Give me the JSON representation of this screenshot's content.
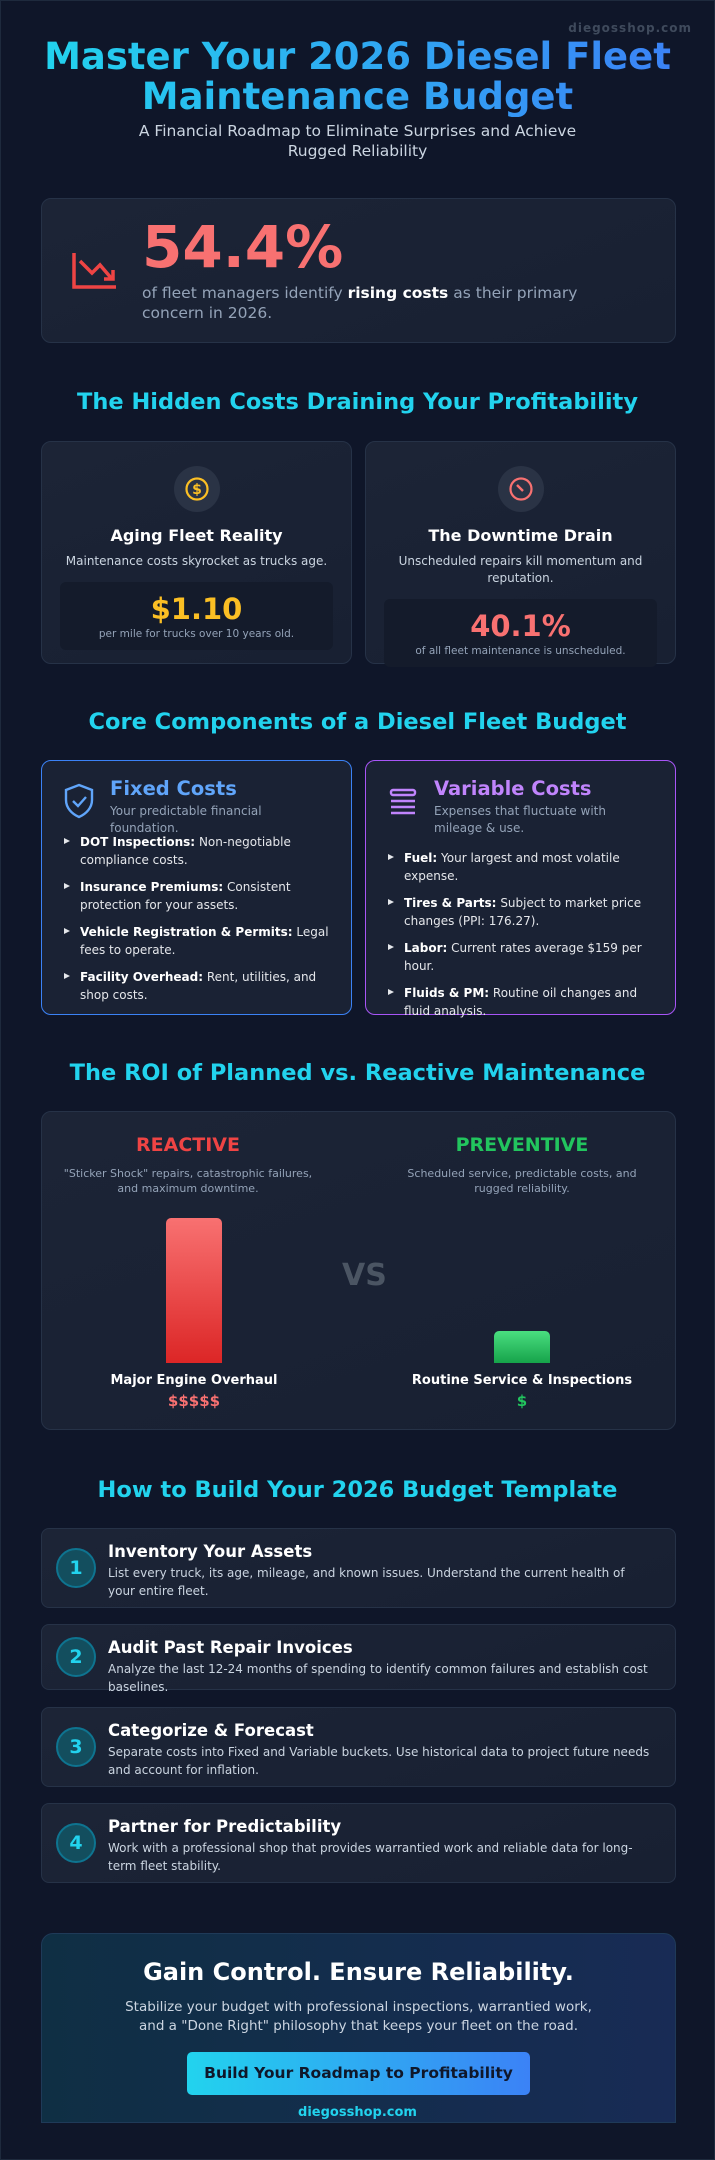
{
  "watermark": "diegosshop.com",
  "header": {
    "title": "Master Your 2026 Diesel Fleet Maintenance Budget",
    "subtitle": "A Financial Roadmap to Eliminate Surprises and Achieve Rugged Reliability"
  },
  "stat": {
    "value": "54.4%",
    "text_before": "of fleet managers identify",
    "emphasis": "rising costs",
    "text_after": "as their primary concern in 2026."
  },
  "hidden_costs": {
    "heading": "The Hidden Costs Draining Your Profitability",
    "cards": [
      {
        "title": "Aging Fleet Reality",
        "text": "Maintenance costs skyrocket as trucks age.",
        "value": "$1.10",
        "caption": "per mile for trucks over 10 years old."
      },
      {
        "title": "The Downtime Drain",
        "text": "Unscheduled repairs kill momentum and reputation.",
        "value": "40.1%",
        "caption": "of all fleet maintenance is unscheduled."
      }
    ]
  },
  "components": {
    "heading": "Core Components of a Diesel Fleet Budget",
    "columns": [
      {
        "title": "Fixed Costs",
        "subtitle": "Your predictable financial foundation.",
        "items": [
          {
            "label": "DOT Inspections:",
            "text": "Non-negotiable compliance costs."
          },
          {
            "label": "Insurance Premiums:",
            "text": "Consistent protection for your assets."
          },
          {
            "label": "Vehicle Registration & Permits:",
            "text": "Legal fees to operate."
          },
          {
            "label": "Facility Overhead:",
            "text": "Rent, utilities, and shop costs."
          }
        ]
      },
      {
        "title": "Variable Costs",
        "subtitle": "Expenses that fluctuate with mileage & use.",
        "items": [
          {
            "label": "Fuel:",
            "text": "Your largest and most volatile expense."
          },
          {
            "label": "Tires & Parts:",
            "text": "Subject to market price changes (PPI: 176.27)."
          },
          {
            "label": "Labor:",
            "text": "Current rates average $159 per hour."
          },
          {
            "label": "Fluids & PM:",
            "text": "Routine oil changes and fluid analysis."
          }
        ]
      }
    ]
  },
  "roi": {
    "heading": "The ROI of Planned vs. Reactive Maintenance",
    "left": {
      "title": "REACTIVE",
      "text": "\"Sticker Shock\" repairs, catastrophic failures, and maximum downtime.",
      "label": "Major Engine Overhaul",
      "cost": "$$$$$"
    },
    "vs": "VS",
    "right": {
      "title": "PREVENTIVE",
      "text": "Scheduled service, predictable costs, and rugged reliability.",
      "label": "Routine Service & Inspections",
      "cost": "$"
    }
  },
  "steps": {
    "heading": "How to Build Your 2026 Budget Template",
    "items": [
      {
        "number": "1",
        "title": "Inventory Your Assets",
        "text": "List every truck, its age, mileage, and known issues. Understand the current health of your entire fleet."
      },
      {
        "number": "2",
        "title": "Audit Past Repair Invoices",
        "text": "Analyze the last 12-24 months of spending to identify common failures and establish cost baselines."
      },
      {
        "number": "3",
        "title": "Categorize & Forecast",
        "text": "Separate costs into Fixed and Variable buckets. Use historical data to project future needs and account for inflation."
      },
      {
        "number": "4",
        "title": "Partner for Predictability",
        "text": "Work with a professional shop that provides warrantied work and reliable data for long-term fleet stability."
      }
    ]
  },
  "cta": {
    "title": "Gain Control. Ensure Reliability.",
    "text": "Stabilize your budget with professional inspections, warrantied work, and a \"Done Right\" philosophy that keeps your fleet on the road.",
    "button": "Build Your Roadmap to Profitability",
    "link": "diegosshop.com"
  }
}
